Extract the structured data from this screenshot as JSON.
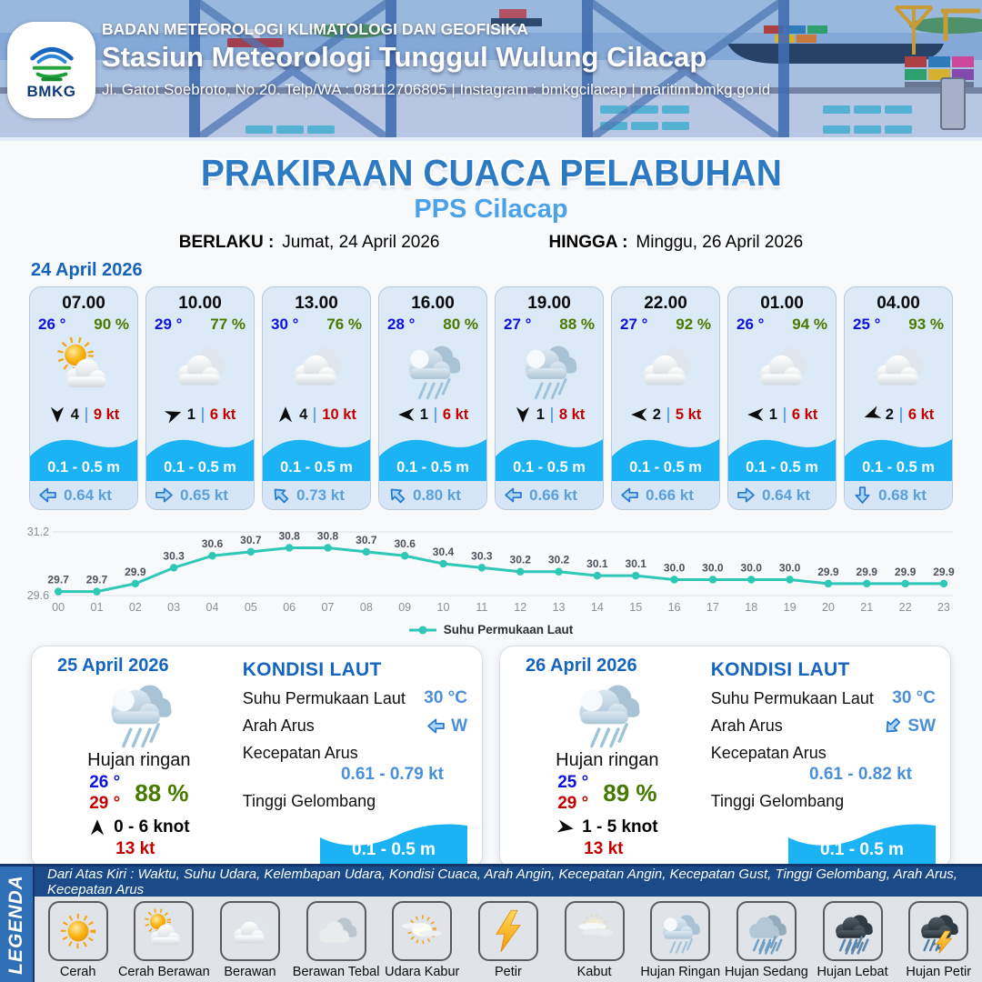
{
  "header": {
    "agency": "BADAN METEOROLOGI KLIMATOLOGI DAN GEOFISIKA",
    "station": "Stasiun Meteorologi Tunggul Wulung Cilacap",
    "contact": "Jl. Gatot Soebroto, No.20. Telp/WA : 08112706805 | Instagram : bmkgcilacap | maritim.bmkg.go.id",
    "logo_text": "BMKG"
  },
  "title": {
    "main": "PRAKIRAAN CUACA PELABUHAN",
    "sub": "PPS Cilacap",
    "valid_label": "BERLAKU :",
    "valid_value": "Jumat, 24 April 2026",
    "until_label": "HINGGA :",
    "until_value": "Minggu, 26 April 2026"
  },
  "forecast": {
    "date": "24 April 2026",
    "cards": [
      {
        "time": "07.00",
        "temp": "26 °",
        "rh": "90 %",
        "icon": "cerah-berawan",
        "wind_deg": 180,
        "wind_speed": "4",
        "gust": "9 kt",
        "wave": "0.1 - 0.5 m",
        "current_deg": 180,
        "current": "0.64 kt"
      },
      {
        "time": "10.00",
        "temp": "29 °",
        "rh": "77 %",
        "icon": "berawan",
        "wind_deg": 70,
        "wind_speed": "1",
        "gust": "6 kt",
        "wave": "0.1 - 0.5 m",
        "current_deg": 0,
        "current": "0.65 kt"
      },
      {
        "time": "13.00",
        "temp": "30 °",
        "rh": "76 %",
        "icon": "berawan",
        "wind_deg": 0,
        "wind_speed": "4",
        "gust": "10 kt",
        "wave": "0.1 - 0.5 m",
        "current_deg": 225,
        "current": "0.73 kt"
      },
      {
        "time": "16.00",
        "temp": "28 °",
        "rh": "80 %",
        "icon": "hujan-ringan",
        "wind_deg": 270,
        "wind_speed": "1",
        "gust": "6 kt",
        "wave": "0.1 - 0.5 m",
        "current_deg": 225,
        "current": "0.80 kt"
      },
      {
        "time": "19.00",
        "temp": "27 °",
        "rh": "88 %",
        "icon": "hujan-ringan",
        "wind_deg": 180,
        "wind_speed": "1",
        "gust": "8 kt",
        "wave": "0.1 - 0.5 m",
        "current_deg": 180,
        "current": "0.66 kt"
      },
      {
        "time": "22.00",
        "temp": "27 °",
        "rh": "92 %",
        "icon": "berawan",
        "wind_deg": 270,
        "wind_speed": "2",
        "gust": "5 kt",
        "wave": "0.1 - 0.5 m",
        "current_deg": 180,
        "current": "0.66 kt"
      },
      {
        "time": "01.00",
        "temp": "26 °",
        "rh": "94 %",
        "icon": "berawan",
        "wind_deg": 270,
        "wind_speed": "1",
        "gust": "6 kt",
        "wave": "0.1 - 0.5 m",
        "current_deg": 0,
        "current": "0.64 kt"
      },
      {
        "time": "04.00",
        "temp": "25 °",
        "rh": "93 %",
        "icon": "berawan",
        "wind_deg": 250,
        "wind_speed": "2",
        "gust": "6 kt",
        "wave": "0.1 - 0.5 m",
        "current_deg": 90,
        "current": "0.68 kt"
      }
    ]
  },
  "chart_data": {
    "type": "line",
    "x": [
      "00",
      "01",
      "02",
      "03",
      "04",
      "05",
      "06",
      "07",
      "08",
      "09",
      "10",
      "11",
      "12",
      "13",
      "14",
      "15",
      "16",
      "17",
      "18",
      "19",
      "20",
      "21",
      "22",
      "23"
    ],
    "values": [
      29.7,
      29.7,
      29.9,
      30.3,
      30.6,
      30.7,
      30.8,
      30.8,
      30.7,
      30.6,
      30.4,
      30.3,
      30.2,
      30.2,
      30.1,
      30.1,
      30.0,
      30.0,
      30.0,
      30.0,
      29.9,
      29.9,
      29.9,
      29.9
    ],
    "legend": "Suhu Permukaan Laut",
    "xlabel": "",
    "ylabel": "",
    "ylim": [
      29.6,
      31.2
    ],
    "yticks": [
      "29.6",
      "31.2"
    ],
    "line_color": "#2fc7b5",
    "grid": true,
    "legend_position": "bottom"
  },
  "daily": [
    {
      "date": "25 April 2026",
      "icon": "hujan-ringan",
      "condition": "Hujan ringan",
      "temp_min": "26 °",
      "temp_max": "29 °",
      "humidity": "88 %",
      "wind_deg": 0,
      "wind_range": "0 - 6 knot",
      "gust": "13 kt",
      "sea": {
        "title": "KONDISI LAUT",
        "sst_label": "Suhu Permukaan Laut",
        "sst_value": "30 °C",
        "current_dir_label": "Arah Arus",
        "current_dir": "W",
        "current_dir_deg": 180,
        "current_speed_label": "Kecepatan Arus",
        "current_speed": "0.61 - 0.79 kt",
        "wave_label": "Tinggi Gelombang",
        "wave_value": "0.1 - 0.5 m"
      }
    },
    {
      "date": "26 April 2026",
      "icon": "hujan-ringan",
      "condition": "Hujan ringan",
      "temp_min": "25 °",
      "temp_max": "29 °",
      "humidity": "89 %",
      "wind_deg": 100,
      "wind_range": "1 - 5 knot",
      "gust": "13 kt",
      "sea": {
        "title": "KONDISI LAUT",
        "sst_label": "Suhu Permukaan Laut",
        "sst_value": "30 °C",
        "current_dir_label": "Arah Arus",
        "current_dir": "SW",
        "current_dir_deg": 135,
        "current_speed_label": "Kecepatan Arus",
        "current_speed": "0.61 - 0.82 kt",
        "wave_label": "Tinggi Gelombang",
        "wave_value": "0.1 - 0.5 m"
      }
    }
  ],
  "legend": {
    "title": "LEGENDA",
    "note": "Dari Atas Kiri : Waktu, Suhu Udara, Kelembapan Udara, Kondisi Cuaca, Arah Angin, Kecepatan Angin, Kecepatan Gust, Tinggi Gelombang, Arah Arus, Kecepatan Arus",
    "items": [
      {
        "label": "Cerah",
        "icon": "cerah"
      },
      {
        "label": "Cerah Berawan",
        "icon": "cerah-berawan"
      },
      {
        "label": "Berawan",
        "icon": "berawan"
      },
      {
        "label": "Berawan Tebal",
        "icon": "berawan-tebal"
      },
      {
        "label": "Udara Kabur",
        "icon": "udara-kabur"
      },
      {
        "label": "Petir",
        "icon": "petir"
      },
      {
        "label": "Kabut",
        "icon": "kabut"
      },
      {
        "label": "Hujan Ringan",
        "icon": "hujan-ringan"
      },
      {
        "label": "Hujan Sedang",
        "icon": "hujan-sedang"
      },
      {
        "label": "Hujan Lebat",
        "icon": "hujan-lebat"
      },
      {
        "label": "Hujan Petir",
        "icon": "hujan-petir"
      }
    ]
  },
  "colors": {
    "title_blue": "#2d7ac4",
    "subtitle_blue": "#4aa2ea",
    "date_blue": "#1563b8",
    "temp_blue": "#0d12df",
    "humidity_green": "#477a00",
    "gust_red": "#c40000",
    "wave_blue": "#1cb3f5",
    "current_text": "#59a0dd",
    "sea_value_blue": "#4a90d9",
    "chart_teal": "#2fc7b5",
    "legend_bar": "#1a4a87",
    "legend_strip": "#2e6fb6"
  }
}
